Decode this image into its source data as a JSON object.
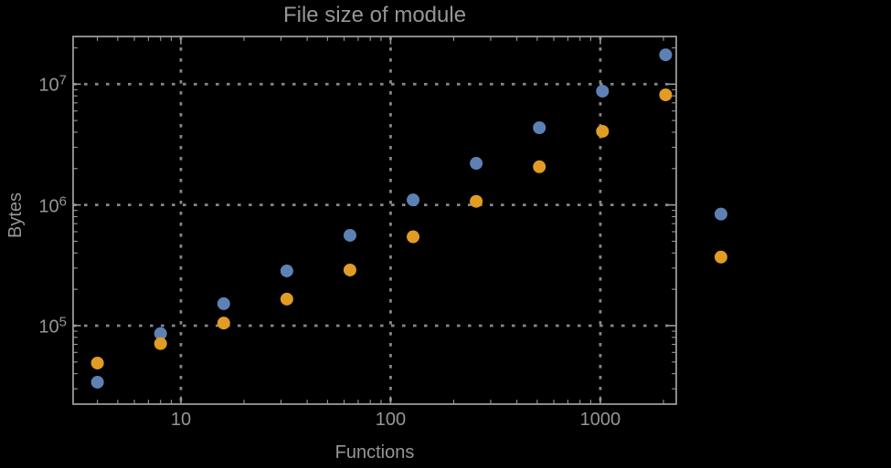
{
  "chart_data": {
    "type": "scatter",
    "title": "File size of module",
    "xlabel": "Functions",
    "ylabel": "Bytes",
    "x_scale": "log",
    "y_scale": "log",
    "xlim_log10": [
      0.486,
      3.362
    ],
    "ylim_log10": [
      4.35,
      7.395
    ],
    "grid": "dotted-major-only",
    "legend": "none",
    "colors": {
      "background": "#000000",
      "frame": "#9a9a9a",
      "grid": "#878787",
      "text": "#969696",
      "series_blue": "#5E81B5",
      "series_orange": "#E19C24"
    },
    "x_ticks": {
      "values": [
        10,
        100,
        1000
      ],
      "labels": [
        "10",
        "100",
        "1000"
      ]
    },
    "y_ticks": {
      "values": [
        10000000,
        1000000,
        100000
      ],
      "labels": [
        {
          "base": "10",
          "exp": "7"
        },
        {
          "base": "10",
          "exp": "6"
        },
        {
          "base": "10",
          "exp": "5"
        }
      ]
    },
    "x": [
      4,
      8,
      16,
      32,
      64,
      128,
      256,
      512,
      1024,
      2048,
      3760
    ],
    "series": [
      {
        "name": "series-blue",
        "color": "#5E81B5",
        "values": [
          34000,
          86000,
          152000,
          284000,
          560000,
          1100000,
          2210000,
          4360000,
          8750000,
          17500000,
          840000
        ]
      },
      {
        "name": "series-orange",
        "color": "#E19C24",
        "values": [
          49000,
          71000,
          105000,
          166000,
          289000,
          545000,
          1070000,
          2070000,
          4070000,
          8160000,
          370000
        ]
      }
    ]
  }
}
